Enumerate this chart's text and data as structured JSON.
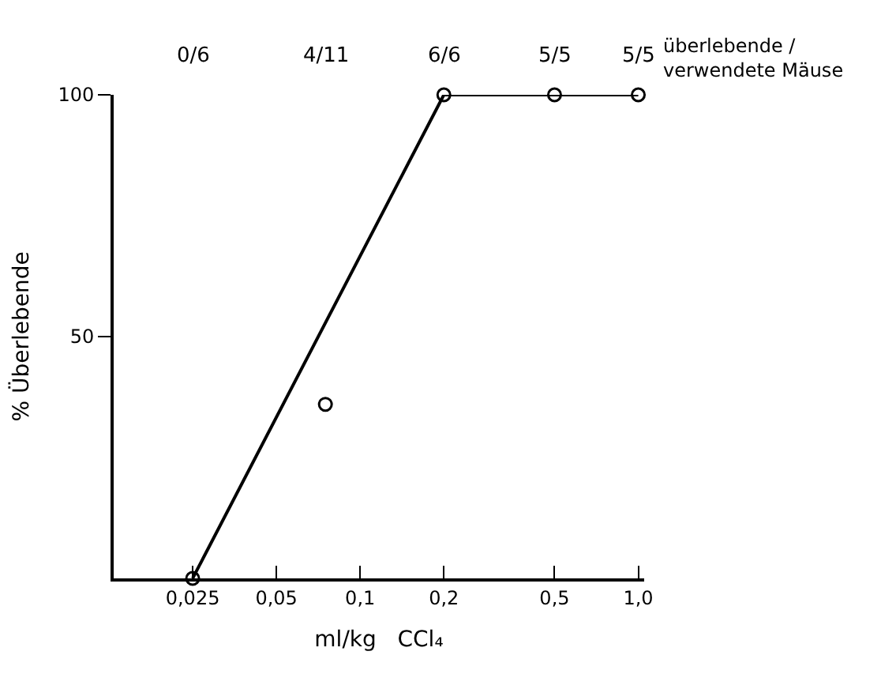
{
  "chart_data": {
    "type": "line",
    "xlabel": "ml/kg   CCl₄",
    "ylabel": "% Überlebende",
    "annotations": [
      "0/6",
      "4/11",
      "6/6",
      "5/5",
      "5/5",
      "überlebende /\nverwendete Mäuse"
    ],
    "log": "x",
    "marker": "circle",
    "line_style": "solid",
    "xlim": [
      0.013,
      1.05
    ],
    "xticks": [
      {
        "value": 0.025,
        "label": "0,025"
      },
      {
        "value": 0.05,
        "label": "0,05"
      },
      {
        "value": 0.1,
        "label": "0,1"
      },
      {
        "value": 0.2,
        "label": "0,2"
      },
      {
        "value": 0.5,
        "label": "0,5"
      },
      {
        "value": 1.0,
        "label": "1,0"
      }
    ],
    "ylim": [
      0,
      100
    ],
    "yticks": [
      50,
      100
    ],
    "series": [
      {
        "color": "#000000",
        "x": [
          0.025,
          0.2,
          0.5,
          1.0
        ],
        "values": [
          0,
          100,
          100,
          100
        ]
      },
      {
        "type": "scatter",
        "color": "#000000",
        "x": [
          0.075
        ],
        "values": [
          36
        ]
      }
    ]
  }
}
